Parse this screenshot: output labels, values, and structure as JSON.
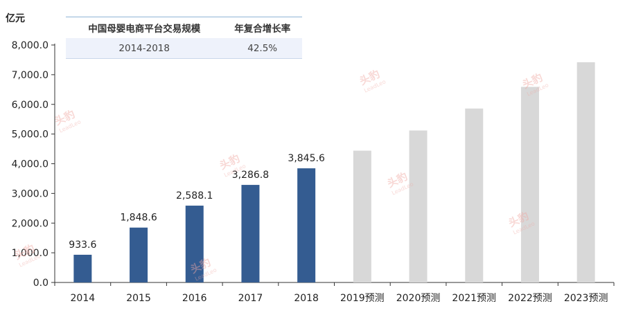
{
  "unit_label": "亿元",
  "summary_table": {
    "headers": [
      "中国母婴电商平台交易规模",
      "年复合增长率"
    ],
    "row": [
      "2014-2018",
      "42.5%"
    ]
  },
  "watermark": {
    "text": "头豹",
    "sub": "LeadLeo"
  },
  "colors": {
    "actual_bar": "#345c91",
    "forecast_bar": "#d8d8d8",
    "axis": "#333333"
  },
  "chart_data": {
    "type": "bar",
    "categories": [
      "2014",
      "2015",
      "2016",
      "2017",
      "2018",
      "2019预测",
      "2020预测",
      "2021预测",
      "2022预测",
      "2023预测"
    ],
    "values": [
      933.6,
      1848.6,
      2588.1,
      3286.8,
      3845.6,
      4440,
      5120,
      5860,
      6590,
      7420
    ],
    "data_labels": [
      "933.6",
      "1,848.6",
      "2,588.1",
      "3,286.8",
      "3,845.6",
      "",
      "",
      "",
      "",
      ""
    ],
    "forecast": [
      false,
      false,
      false,
      false,
      false,
      true,
      true,
      true,
      true,
      true
    ],
    "yticks": [
      "0.0",
      "1,000.0",
      "2,000.0",
      "3,000.0",
      "4,000.0",
      "5,000.0",
      "6,000.0",
      "7,000.0",
      "8,000.0"
    ],
    "ylim": [
      0,
      8000
    ],
    "ylabel": "亿元",
    "grid": false,
    "legend": "none"
  }
}
